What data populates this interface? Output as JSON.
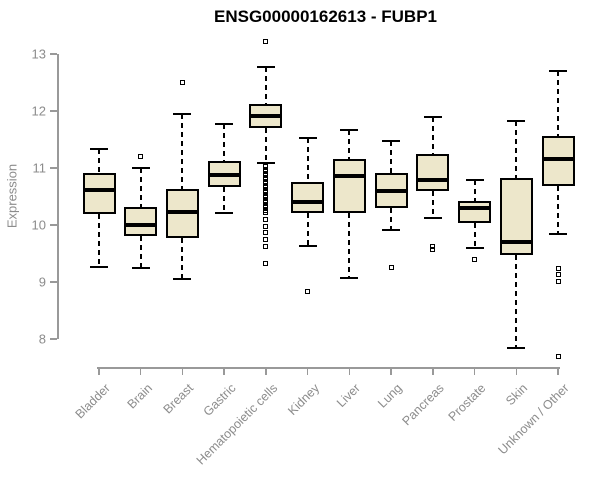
{
  "chart_data": {
    "type": "boxplot",
    "title": "ENSG00000162613 - FUBP1",
    "ylabel": "Expression",
    "xlabel": "",
    "ylim": [
      8,
      13
    ],
    "yticks": [
      8,
      9,
      10,
      11,
      12,
      13
    ],
    "grid": false,
    "legend": "none",
    "colors": {
      "box_fill": "#ede7cb",
      "box_stroke": "#000000",
      "axis": "#999999",
      "tick_label": "#8c8c8c",
      "title": "#000000"
    },
    "categories": [
      "Bladder",
      "Brain",
      "Breast",
      "Gastric",
      "Hematopoietic cells",
      "Kidney",
      "Liver",
      "Lung",
      "Pancreas",
      "Prostate",
      "Skin",
      "Unknown / Other"
    ],
    "boxes": [
      {
        "category": "Bladder",
        "whisker_low": 9.27,
        "q1": 10.19,
        "median": 10.61,
        "q3": 10.91,
        "whisker_high": 11.33,
        "outliers": []
      },
      {
        "category": "Brain",
        "whisker_low": 9.24,
        "q1": 9.8,
        "median": 10.0,
        "q3": 10.32,
        "whisker_high": 11.0,
        "outliers": [
          11.21
        ]
      },
      {
        "category": "Breast",
        "whisker_low": 9.05,
        "q1": 9.77,
        "median": 10.22,
        "q3": 10.63,
        "whisker_high": 11.94,
        "outliers": [
          12.5
        ]
      },
      {
        "category": "Gastric",
        "whisker_low": 10.21,
        "q1": 10.67,
        "median": 10.88,
        "q3": 11.13,
        "whisker_high": 11.77,
        "outliers": []
      },
      {
        "category": "Hematopoietic cells",
        "whisker_low": 11.09,
        "q1": 11.7,
        "median": 11.92,
        "q3": 12.12,
        "whisker_high": 12.78,
        "outliers": [
          13.22,
          11.02,
          10.97,
          10.93,
          10.88,
          10.84,
          10.79,
          10.75,
          10.7,
          10.66,
          10.61,
          10.57,
          10.52,
          10.48,
          10.43,
          10.39,
          10.34,
          10.3,
          10.26,
          10.22,
          10.1,
          9.98,
          9.86,
          9.75,
          9.63,
          9.33
        ]
      },
      {
        "category": "Kidney",
        "whisker_low": 9.63,
        "q1": 10.21,
        "median": 10.41,
        "q3": 10.76,
        "whisker_high": 11.53,
        "outliers": [
          8.83
        ]
      },
      {
        "category": "Liver",
        "whisker_low": 9.07,
        "q1": 10.21,
        "median": 10.86,
        "q3": 11.15,
        "whisker_high": 11.67,
        "outliers": []
      },
      {
        "category": "Lung",
        "whisker_low": 9.91,
        "q1": 10.3,
        "median": 10.6,
        "q3": 10.91,
        "whisker_high": 11.47,
        "outliers": [
          9.25
        ]
      },
      {
        "category": "Pancreas",
        "whisker_low": 10.12,
        "q1": 10.6,
        "median": 10.79,
        "q3": 11.25,
        "whisker_high": 11.89,
        "outliers": [
          9.63,
          9.57
        ]
      },
      {
        "category": "Prostate",
        "whisker_low": 9.59,
        "q1": 10.04,
        "median": 10.29,
        "q3": 10.42,
        "whisker_high": 10.79,
        "outliers": [
          9.39
        ]
      },
      {
        "category": "Skin",
        "whisker_low": 7.85,
        "q1": 9.47,
        "median": 9.7,
        "q3": 10.82,
        "whisker_high": 11.82,
        "outliers": []
      },
      {
        "category": "Unknown / Other",
        "whisker_low": 9.85,
        "q1": 10.68,
        "median": 11.16,
        "q3": 11.56,
        "whisker_high": 12.7,
        "outliers": [
          9.24,
          9.13,
          9.01,
          7.7
        ]
      }
    ]
  }
}
